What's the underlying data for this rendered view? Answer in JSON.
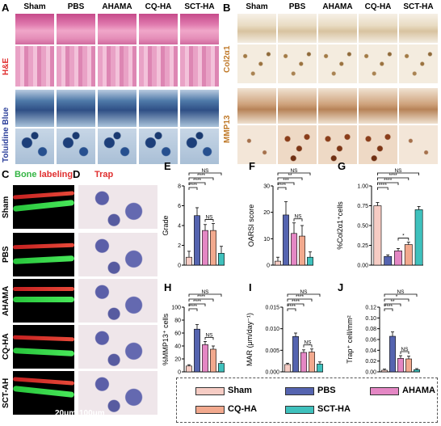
{
  "panels": {
    "A": {
      "label": "A",
      "columns": [
        "Sham",
        "PBS",
        "AHAMA",
        "CQ-HA",
        "SCT-HA"
      ],
      "rows": [
        "H&E",
        "Toluidine Blue"
      ],
      "row_colors": [
        "#e03030",
        "#2b3f9a"
      ]
    },
    "B": {
      "label": "B",
      "columns": [
        "Sham",
        "PBS",
        "AHAMA",
        "CQ-HA",
        "SCT-HA"
      ],
      "rows": [
        "Col2α1",
        "MMP13"
      ],
      "row_colors": [
        "#c07a2a",
        "#c07a2a"
      ]
    },
    "C": {
      "label": "C",
      "title_bone": "Bone",
      "title_labeling": "labeling",
      "rows": [
        "Sham",
        "PBS",
        "AHAMA",
        "CQ-HA",
        "SCT-AH"
      ],
      "scale": "20μm"
    },
    "D": {
      "label": "D",
      "title": "Trap",
      "scale": "100μm"
    }
  },
  "colors": {
    "sham": "#f6ccc4",
    "pbs": "#5564b0",
    "ahama": "#e487c4",
    "cqha": "#f2a98e",
    "sctha": "#3fc1bd"
  },
  "chart_data": [
    {
      "id": "E",
      "type": "bar",
      "ylabel": "Grade",
      "ylim": [
        0,
        8
      ],
      "yticks": [
        0,
        2,
        4,
        6,
        8
      ],
      "values": [
        0.8,
        5.0,
        3.5,
        3.5,
        1.2
      ],
      "errors": [
        0.6,
        0.8,
        0.6,
        0.7,
        0.7
      ],
      "brackets": [
        {
          "from": 0,
          "to": 4,
          "label": "NS"
        },
        {
          "from": 0,
          "to": 3,
          "label": "****"
        },
        {
          "from": 0,
          "to": 2,
          "label": "****"
        },
        {
          "from": 0,
          "to": 1,
          "label": "****"
        },
        {
          "from": 2,
          "to": 3,
          "label": "NS"
        }
      ]
    },
    {
      "id": "F",
      "type": "bar",
      "ylabel": "OARSI score",
      "ylim": [
        0,
        30
      ],
      "yticks": [
        0,
        10,
        20,
        30
      ],
      "values": [
        1.5,
        19,
        12,
        11,
        3
      ],
      "errors": [
        1.5,
        5,
        4,
        4,
        2
      ],
      "brackets": [
        {
          "from": 0,
          "to": 4,
          "label": "NS"
        },
        {
          "from": 0,
          "to": 3,
          "label": "**"
        },
        {
          "from": 0,
          "to": 2,
          "label": "***"
        },
        {
          "from": 0,
          "to": 1,
          "label": "****"
        },
        {
          "from": 2,
          "to": 3,
          "label": "NS"
        }
      ]
    },
    {
      "id": "G",
      "type": "bar",
      "ylabel": "%Col2α1⁺cells",
      "ylim": [
        0,
        1.0
      ],
      "yticks": [
        "0.00",
        "0.25",
        "0.50",
        "0.75",
        "1.00"
      ],
      "values": [
        0.75,
        0.11,
        0.18,
        0.26,
        0.7
      ],
      "errors": [
        0.04,
        0.02,
        0.03,
        0.03,
        0.04
      ],
      "brackets": [
        {
          "from": 0,
          "to": 4,
          "label": "NS"
        },
        {
          "from": 0,
          "to": 3,
          "label": "****"
        },
        {
          "from": 0,
          "to": 2,
          "label": "****"
        },
        {
          "from": 0,
          "to": 1,
          "label": "****"
        },
        {
          "from": 2,
          "to": 3,
          "label": "*"
        }
      ]
    },
    {
      "id": "H",
      "type": "bar",
      "ylabel": "%MMP13⁺ cells",
      "ylim": [
        0,
        100
      ],
      "yticks": [
        0,
        20,
        40,
        60,
        80,
        100
      ],
      "values": [
        9,
        66,
        42,
        35,
        13
      ],
      "errors": [
        2,
        7,
        5,
        5,
        3
      ],
      "brackets": [
        {
          "from": 0,
          "to": 4,
          "label": "NS"
        },
        {
          "from": 0,
          "to": 3,
          "label": "****"
        },
        {
          "from": 0,
          "to": 2,
          "label": "****"
        },
        {
          "from": 0,
          "to": 1,
          "label": "****"
        },
        {
          "from": 2,
          "to": 3,
          "label": "NS"
        }
      ]
    },
    {
      "id": "I",
      "type": "bar",
      "ylabel": "MAR (μm/day⁻¹)",
      "ylim": [
        0,
        0.015
      ],
      "yticks": [
        "0.000",
        "0.005",
        "0.010",
        "0.015"
      ],
      "values": [
        0.0017,
        0.0082,
        0.0045,
        0.0046,
        0.0018
      ],
      "errors": [
        0.0003,
        0.0008,
        0.0006,
        0.0007,
        0.0005
      ],
      "brackets": [
        {
          "from": 0,
          "to": 4,
          "label": "NS"
        },
        {
          "from": 0,
          "to": 3,
          "label": "****"
        },
        {
          "from": 0,
          "to": 2,
          "label": "****"
        },
        {
          "from": 0,
          "to": 1,
          "label": "****"
        },
        {
          "from": 2,
          "to": 3,
          "label": "NS"
        }
      ]
    },
    {
      "id": "J",
      "type": "bar",
      "ylabel": "Trap⁺ cell/mm²",
      "ylim": [
        0,
        0.12
      ],
      "yticks": [
        "0.00",
        "0.02",
        "0.04",
        "0.06",
        "0.08",
        "0.10",
        "0.12"
      ],
      "values": [
        0.003,
        0.066,
        0.025,
        0.024,
        0.004
      ],
      "errors": [
        0.002,
        0.008,
        0.005,
        0.005,
        0.002
      ],
      "brackets": [
        {
          "from": 0,
          "to": 4,
          "label": "NS"
        },
        {
          "from": 0,
          "to": 3,
          "label": "*"
        },
        {
          "from": 0,
          "to": 2,
          "label": "**"
        },
        {
          "from": 0,
          "to": 1,
          "label": "****"
        },
        {
          "from": 2,
          "to": 3,
          "label": "NS"
        }
      ]
    }
  ],
  "legend": [
    {
      "name": "Sham",
      "color": "#f6ccc4"
    },
    {
      "name": "PBS",
      "color": "#5564b0"
    },
    {
      "name": "AHAMA",
      "color": "#e487c4"
    },
    {
      "name": "CQ-HA",
      "color": "#f2a98e"
    },
    {
      "name": "SCT-HA",
      "color": "#3fc1bd"
    }
  ]
}
